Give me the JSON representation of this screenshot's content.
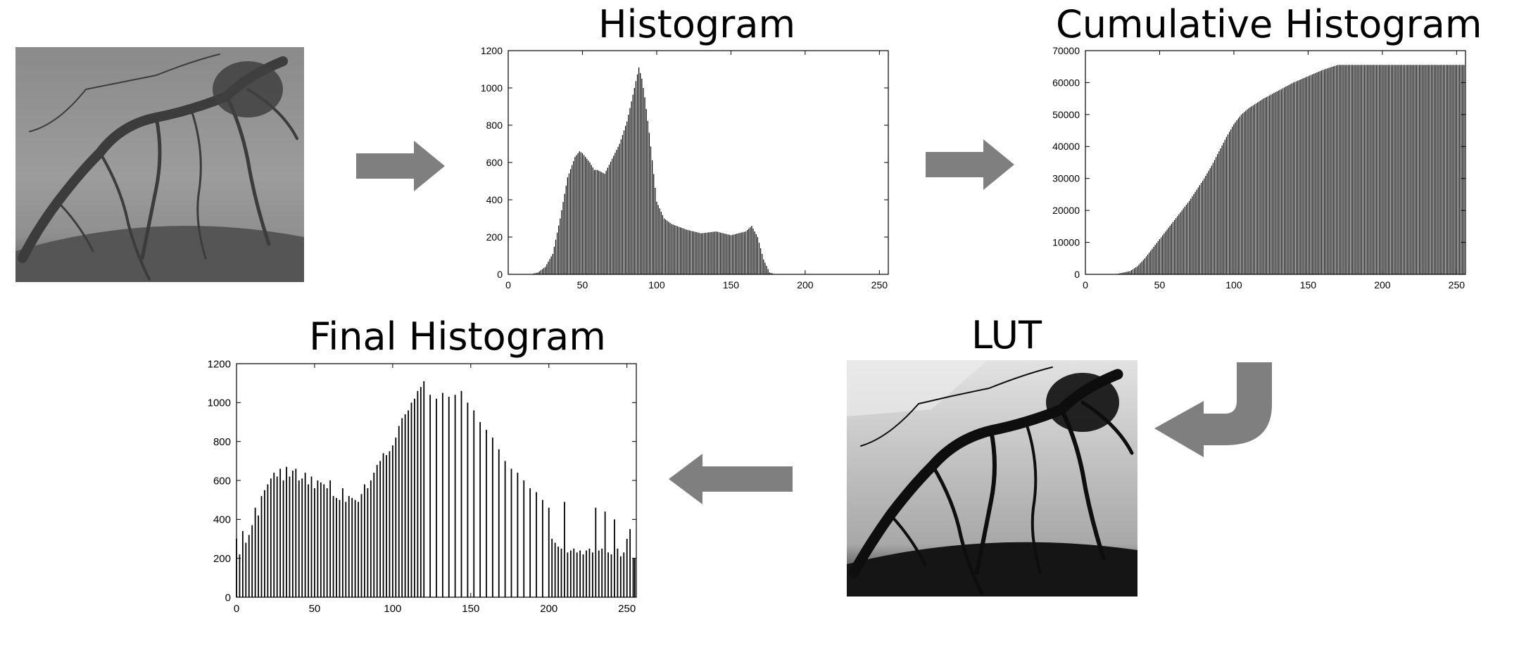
{
  "titles": {
    "histogram": "Histogram",
    "cumulative": "Cumulative Histogram",
    "final": "Final Histogram",
    "lut": "LUT"
  },
  "icons": {
    "arrow_1": "right-arrow-icon",
    "arrow_2": "right-arrow-icon",
    "arrow_3": "curved-down-left-arrow-icon",
    "arrow_4": "left-arrow-icon"
  },
  "colors": {
    "arrow": "#7f7f7f",
    "bars": "#000000",
    "frame": "#000000"
  },
  "chart_data": [
    {
      "id": "histogram",
      "type": "bar",
      "title": "Histogram",
      "xlim": [
        0,
        256
      ],
      "ylim": [
        0,
        1200
      ],
      "xticks": [
        0,
        50,
        100,
        150,
        200,
        250
      ],
      "yticks": [
        0,
        200,
        400,
        600,
        800,
        1000,
        1200
      ],
      "x_step": 1,
      "x": [
        0,
        5,
        10,
        15,
        20,
        25,
        30,
        35,
        40,
        45,
        48,
        50,
        55,
        58,
        60,
        65,
        70,
        75,
        80,
        85,
        88,
        90,
        92,
        95,
        100,
        105,
        110,
        120,
        130,
        140,
        150,
        155,
        160,
        164,
        168,
        172,
        176,
        180,
        190,
        200,
        256
      ],
      "values": [
        0,
        0,
        0,
        0,
        10,
        40,
        110,
        300,
        520,
        630,
        660,
        650,
        600,
        560,
        560,
        540,
        620,
        700,
        820,
        1000,
        1110,
        1050,
        950,
        760,
        390,
        300,
        270,
        240,
        220,
        230,
        210,
        220,
        230,
        260,
        200,
        80,
        10,
        0,
        0,
        0,
        0
      ]
    },
    {
      "id": "cumulative",
      "type": "bar",
      "title": "Cumulative Histogram",
      "xlim": [
        0,
        256
      ],
      "ylim": [
        0,
        70000
      ],
      "xticks": [
        0,
        50,
        100,
        150,
        200,
        250
      ],
      "yticks": [
        0,
        10000,
        20000,
        30000,
        40000,
        50000,
        60000,
        70000
      ],
      "x_step": 1,
      "x": [
        0,
        20,
        30,
        35,
        40,
        45,
        50,
        55,
        60,
        65,
        70,
        75,
        80,
        85,
        90,
        95,
        100,
        105,
        110,
        120,
        130,
        140,
        150,
        160,
        170,
        175,
        200,
        256
      ],
      "values": [
        0,
        0,
        1000,
        2500,
        5000,
        8000,
        11000,
        14000,
        17000,
        20000,
        23000,
        26500,
        30000,
        34000,
        38500,
        43000,
        47000,
        50000,
        52000,
        55000,
        57500,
        60000,
        62000,
        64000,
        65536,
        65536,
        65536,
        65536
      ]
    },
    {
      "id": "final",
      "type": "bar",
      "title": "Final Histogram",
      "xlim": [
        0,
        256
      ],
      "ylim": [
        0,
        1200
      ],
      "xticks": [
        0,
        50,
        100,
        150,
        200,
        250
      ],
      "yticks": [
        0,
        200,
        400,
        600,
        800,
        1000,
        1200
      ],
      "x": [
        0,
        2,
        4,
        6,
        8,
        10,
        12,
        14,
        16,
        18,
        20,
        22,
        24,
        26,
        28,
        30,
        32,
        34,
        36,
        38,
        40,
        42,
        44,
        46,
        48,
        50,
        52,
        54,
        56,
        58,
        60,
        62,
        64,
        66,
        68,
        70,
        72,
        74,
        76,
        78,
        80,
        82,
        84,
        86,
        88,
        90,
        92,
        94,
        96,
        98,
        100,
        102,
        104,
        106,
        108,
        110,
        112,
        114,
        116,
        118,
        120,
        124,
        128,
        132,
        136,
        140,
        144,
        148,
        152,
        156,
        160,
        164,
        168,
        172,
        176,
        180,
        184,
        188,
        192,
        196,
        200,
        202,
        204,
        206,
        208,
        210,
        212,
        214,
        216,
        218,
        220,
        222,
        224,
        226,
        228,
        230,
        232,
        234,
        236,
        238,
        240,
        242,
        244,
        246,
        248,
        250,
        252,
        254,
        255
      ],
      "values": [
        300,
        220,
        340,
        280,
        320,
        370,
        460,
        420,
        520,
        550,
        580,
        610,
        640,
        620,
        660,
        600,
        670,
        620,
        650,
        660,
        600,
        610,
        640,
        580,
        620,
        560,
        600,
        590,
        580,
        560,
        600,
        520,
        510,
        500,
        560,
        490,
        520,
        510,
        500,
        490,
        530,
        580,
        560,
        600,
        640,
        680,
        700,
        740,
        730,
        750,
        780,
        820,
        880,
        920,
        940,
        960,
        1000,
        1020,
        1060,
        1080,
        1110,
        1040,
        1020,
        1050,
        1030,
        1040,
        1060,
        1000,
        960,
        900,
        860,
        820,
        760,
        700,
        660,
        640,
        600,
        560,
        540,
        500,
        460,
        300,
        280,
        260,
        250,
        490,
        230,
        240,
        250,
        230,
        240,
        220,
        240,
        250,
        230,
        460,
        240,
        250,
        440,
        230,
        220,
        400,
        250,
        210,
        230,
        300,
        350,
        200,
        200
      ]
    }
  ]
}
